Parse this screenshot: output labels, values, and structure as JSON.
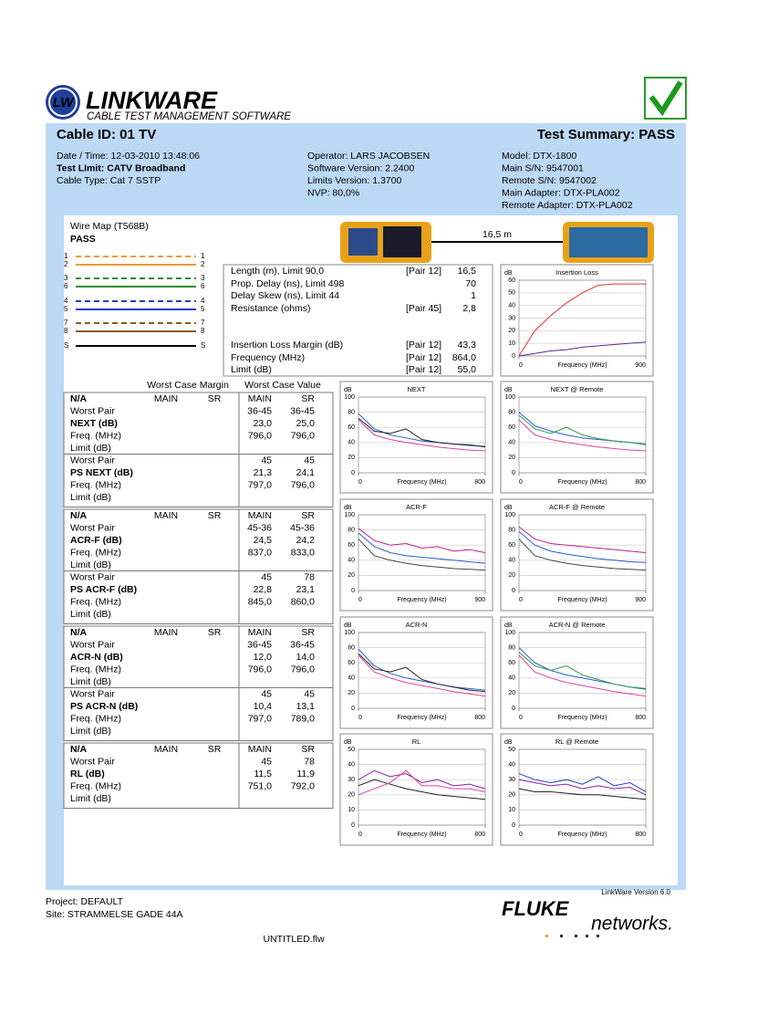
{
  "header": {
    "logo_mark": "LW",
    "logo_title": "LINKWARE",
    "logo_sub": "CABLE TEST MANAGEMENT SOFTWARE",
    "cable_id": "Cable ID: 01 TV",
    "summary": "Test Summary: PASS"
  },
  "info": {
    "col1": [
      "Date / Time: 12-03-2010 13:48:06",
      "Test LImit: CATV Broadband",
      "Cable Type: Cat 7 SSTP"
    ],
    "col2": [
      "Operator: LARS JACOBSEN",
      "Software Version: 2.2400",
      "Limits Version: 1.3700",
      "NVP: 80,0%"
    ],
    "col3": [
      "Model: DTX-1800",
      "Main S/N: 9547001",
      "Remote S/N: 9547002",
      "Main Adapter: DTX-PLA002",
      "Remote Adapter: DTX-PLA002"
    ]
  },
  "wire_map": {
    "title": "Wire Map (T568B)",
    "result": "PASS",
    "pins": [
      1,
      2,
      3,
      6,
      4,
      5,
      7,
      8,
      "S"
    ],
    "colors": [
      "#f39a2b",
      "#f39a2b",
      "#2e8b2e",
      "#2e8b2e",
      "#1f3fbf",
      "#1f3fbf",
      "#8b5a2b",
      "#8b5a2b",
      "#000000"
    ]
  },
  "link_length": "16,5 m",
  "measurements": [
    {
      "label": "Length (m), Limit 90,0",
      "pair": "[Pair 12]",
      "value": "16,5"
    },
    {
      "label": "Prop. Delay (ns), Limit 498",
      "value": "70"
    },
    {
      "label": "Delay Skew (ns), Limit 44",
      "value": "1"
    },
    {
      "label": "Resistance (ohms)",
      "pair": "[Pair 45]",
      "value": "2,8"
    },
    {
      "label": "Insertion Loss Margin (dB)",
      "pair": "[Pair 12]",
      "value": "43,3"
    },
    {
      "label": "Frequency (MHz)",
      "pair": "[Pair 12]",
      "value": "864,0"
    },
    {
      "label": "Limit (dB)",
      "pair": "[Pair 12]",
      "value": "55,0"
    }
  ],
  "table": {
    "margin_header": "Worst Case Margin",
    "value_header": "Worst Case Value",
    "blocks": [
      {
        "head": [
          "N/A",
          "MAIN",
          "SR",
          "MAIN",
          "SR"
        ],
        "rows": [
          {
            "label": "Worst Pair",
            "values": [
              "36-45",
              "36-45"
            ]
          },
          {
            "label": "NEXT (dB)",
            "bold": true,
            "values": [
              "23,0",
              "25,0"
            ]
          },
          {
            "label": "Freq. (MHz)",
            "values": [
              "796,0",
              "796,0"
            ]
          },
          {
            "label": "Limit (dB)"
          },
          {
            "label": "Worst Pair",
            "values": [
              "45",
              "45"
            ]
          },
          {
            "label": "PS NEXT (dB)",
            "bold": true,
            "values": [
              "21,3",
              "24,1"
            ]
          },
          {
            "label": "Freq. (MHz)",
            "values": [
              "797,0",
              "796,0"
            ]
          },
          {
            "label": "Limit (dB)"
          }
        ]
      },
      {
        "head": [
          "N/A",
          "MAIN",
          "SR",
          "MAIN",
          "SR"
        ],
        "rows": [
          {
            "label": "Worst Pair",
            "values": [
              "45-36",
              "45-36"
            ]
          },
          {
            "label": "ACR-F (dB)",
            "bold": true,
            "values": [
              "24,5",
              "24,2"
            ]
          },
          {
            "label": "Freq. (MHz)",
            "values": [
              "837,0",
              "833,0"
            ]
          },
          {
            "label": "Limit (dB)"
          },
          {
            "label": "Worst Pair",
            "values": [
              "45",
              "78"
            ]
          },
          {
            "label": "PS ACR-F (dB)",
            "bold": true,
            "values": [
              "22,8",
              "23,1"
            ]
          },
          {
            "label": "Freq. (MHz)",
            "values": [
              "845,0",
              "860,0"
            ]
          },
          {
            "label": "Limit (dB)"
          }
        ]
      },
      {
        "head": [
          "N/A",
          "MAIN",
          "SR",
          "MAIN",
          "SR"
        ],
        "rows": [
          {
            "label": "Worst Pair",
            "values": [
              "36-45",
              "36-45"
            ]
          },
          {
            "label": "ACR-N (dB)",
            "bold": true,
            "values": [
              "12,0",
              "14,0"
            ]
          },
          {
            "label": "Freq. (MHz)",
            "values": [
              "796,0",
              "796,0"
            ]
          },
          {
            "label": "Limit (dB)"
          },
          {
            "label": "Worst Pair",
            "values": [
              "45",
              "45"
            ]
          },
          {
            "label": "PS ACR-N (dB)",
            "bold": true,
            "values": [
              "10,4",
              "13,1"
            ]
          },
          {
            "label": "Freq. (MHz)",
            "values": [
              "797,0",
              "789,0"
            ]
          },
          {
            "label": "Limit (dB)"
          }
        ]
      },
      {
        "head": [
          "N/A",
          "MAIN",
          "SR",
          "MAIN",
          "SR"
        ],
        "rows": [
          {
            "label": "Worst Pair",
            "values": [
              "45",
              "78"
            ]
          },
          {
            "label": "RL (dB)",
            "bold": true,
            "values": [
              "11,5",
              "11,9"
            ]
          },
          {
            "label": "Freq. (MHz)",
            "values": [
              "751,0",
              "792,0"
            ]
          },
          {
            "label": "Limit (dB)"
          }
        ]
      }
    ]
  },
  "charts": [
    {
      "type": "line",
      "title": "Insertion Loss",
      "ylabel": "dB",
      "xlabel": "Frequency (MHz)",
      "xlim": [
        0,
        900
      ],
      "ylim": [
        0,
        60
      ],
      "xticks": [
        0,
        900
      ],
      "yticks": [
        0,
        10,
        20,
        30,
        40,
        50,
        60
      ],
      "x": [
        0,
        112.5,
        225,
        337.5,
        450,
        562.5,
        675,
        787.5,
        900
      ],
      "series": [
        {
          "color": "#e83030",
          "values": [
            0,
            20,
            32,
            42,
            50,
            56,
            57,
            57,
            57
          ]
        },
        {
          "color": "#5a2a9a",
          "values": [
            0,
            2,
            4,
            5,
            7,
            8,
            9,
            10,
            11
          ]
        }
      ]
    },
    {
      "type": "line",
      "title": "NEXT",
      "ylabel": "dB",
      "xlabel": "Frequency (MHz)",
      "xlim": [
        0,
        800
      ],
      "ylim": [
        0,
        100
      ],
      "xticks": [
        0,
        800
      ],
      "yticks": [
        0,
        20,
        40,
        60,
        80,
        100
      ],
      "x": [
        0,
        100,
        200,
        300,
        400,
        500,
        600,
        700,
        800
      ],
      "series": [
        {
          "color": "#2a5ad0",
          "values": [
            78,
            58,
            50,
            46,
            42,
            40,
            38,
            36,
            35
          ]
        },
        {
          "color": "#222222",
          "values": [
            72,
            55,
            52,
            58,
            44,
            40,
            38,
            37,
            34
          ]
        },
        {
          "color": "#e040a0",
          "values": [
            70,
            50,
            44,
            40,
            37,
            34,
            32,
            30,
            29
          ]
        }
      ]
    },
    {
      "type": "line",
      "title": "NEXT @ Remote",
      "ylabel": "dB",
      "xlabel": "Frequency (MHz)",
      "xlim": [
        0,
        800
      ],
      "ylim": [
        0,
        100
      ],
      "xticks": [
        0,
        800
      ],
      "yticks": [
        0,
        20,
        40,
        60,
        80,
        100
      ],
      "x": [
        0,
        100,
        200,
        300,
        400,
        500,
        600,
        700,
        800
      ],
      "series": [
        {
          "color": "#2a5ad0",
          "values": [
            80,
            62,
            55,
            50,
            46,
            44,
            42,
            40,
            38
          ]
        },
        {
          "color": "#2a9a4a",
          "values": [
            76,
            58,
            52,
            60,
            50,
            45,
            42,
            40,
            37
          ]
        },
        {
          "color": "#e040a0",
          "values": [
            70,
            50,
            44,
            40,
            37,
            34,
            32,
            30,
            29
          ]
        }
      ]
    },
    {
      "type": "line",
      "title": "ACR-F",
      "ylabel": "dB",
      "xlabel": "Frequency (MHz)",
      "xlim": [
        0,
        900
      ],
      "ylim": [
        0,
        100
      ],
      "xticks": [
        0,
        900
      ],
      "yticks": [
        0,
        20,
        40,
        60,
        80,
        100
      ],
      "x": [
        0,
        112.5,
        225,
        337.5,
        450,
        562.5,
        675,
        787.5,
        900
      ],
      "series": [
        {
          "color": "#c0208a",
          "values": [
            82,
            66,
            60,
            62,
            56,
            58,
            52,
            54,
            50
          ]
        },
        {
          "color": "#2a5ad0",
          "values": [
            76,
            58,
            50,
            46,
            44,
            42,
            40,
            38,
            36
          ]
        },
        {
          "color": "#444444",
          "values": [
            68,
            46,
            40,
            36,
            33,
            31,
            29,
            28,
            27
          ]
        }
      ]
    },
    {
      "type": "line",
      "title": "ACR-F @ Remote",
      "ylabel": "dB",
      "xlabel": "Frequency (MHz)",
      "xlim": [
        0,
        900
      ],
      "ylim": [
        0,
        100
      ],
      "xticks": [
        0,
        900
      ],
      "yticks": [
        0,
        20,
        40,
        60,
        80,
        100
      ],
      "x": [
        0,
        112.5,
        225,
        337.5,
        450,
        562.5,
        675,
        787.5,
        900
      ],
      "series": [
        {
          "color": "#c0208a",
          "values": [
            84,
            68,
            62,
            60,
            58,
            56,
            54,
            52,
            50
          ]
        },
        {
          "color": "#2a5ad0",
          "values": [
            78,
            60,
            52,
            48,
            45,
            42,
            40,
            38,
            37
          ]
        },
        {
          "color": "#444444",
          "values": [
            68,
            46,
            40,
            36,
            33,
            31,
            29,
            28,
            27
          ]
        }
      ]
    },
    {
      "type": "line",
      "title": "ACR-N",
      "ylabel": "dB",
      "xlabel": "Frequency (MHz)",
      "xlim": [
        0,
        800
      ],
      "ylim": [
        0,
        100
      ],
      "xticks": [
        0,
        800
      ],
      "yticks": [
        0,
        20,
        40,
        60,
        80,
        100
      ],
      "x": [
        0,
        100,
        200,
        300,
        400,
        500,
        600,
        700,
        800
      ],
      "series": [
        {
          "color": "#2a5ad0",
          "values": [
            78,
            56,
            46,
            40,
            36,
            32,
            28,
            26,
            24
          ]
        },
        {
          "color": "#222222",
          "values": [
            72,
            52,
            48,
            54,
            38,
            32,
            28,
            24,
            22
          ]
        },
        {
          "color": "#e040a0",
          "values": [
            70,
            48,
            40,
            34,
            30,
            26,
            22,
            19,
            16
          ]
        }
      ]
    },
    {
      "type": "line",
      "title": "ACR-N @ Remote",
      "ylabel": "dB",
      "xlabel": "Frequency (MHz)",
      "xlim": [
        0,
        800
      ],
      "ylim": [
        0,
        100
      ],
      "xticks": [
        0,
        800
      ],
      "yticks": [
        0,
        20,
        40,
        60,
        80,
        100
      ],
      "x": [
        0,
        100,
        200,
        300,
        400,
        500,
        600,
        700,
        800
      ],
      "series": [
        {
          "color": "#2a5ad0",
          "values": [
            80,
            60,
            50,
            44,
            40,
            36,
            32,
            28,
            26
          ]
        },
        {
          "color": "#2a9a4a",
          "values": [
            74,
            56,
            50,
            56,
            44,
            38,
            32,
            28,
            25
          ]
        },
        {
          "color": "#e040a0",
          "values": [
            70,
            48,
            40,
            34,
            30,
            26,
            22,
            19,
            16
          ]
        }
      ]
    },
    {
      "type": "line",
      "title": "RL",
      "ylabel": "dB",
      "xlabel": "Frequency (MHz)",
      "xlim": [
        0,
        800
      ],
      "ylim": [
        0,
        50
      ],
      "xticks": [
        0,
        800
      ],
      "yticks": [
        0,
        10,
        20,
        30,
        40,
        50
      ],
      "x": [
        0,
        100,
        200,
        300,
        400,
        500,
        600,
        700,
        800
      ],
      "series": [
        {
          "color": "#8a20a0",
          "values": [
            30,
            36,
            32,
            34,
            28,
            30,
            26,
            27,
            24
          ]
        },
        {
          "color": "#222222",
          "values": [
            26,
            30,
            27,
            24,
            22,
            20,
            19,
            18,
            17
          ]
        },
        {
          "color": "#e040a0",
          "values": [
            20,
            24,
            28,
            36,
            26,
            26,
            24,
            24,
            22
          ]
        }
      ]
    },
    {
      "type": "line",
      "title": "RL @ Remote",
      "ylabel": "dB",
      "xlabel": "Frequency (MHz)",
      "xlim": [
        0,
        800
      ],
      "ylim": [
        0,
        50
      ],
      "xticks": [
        0,
        800
      ],
      "yticks": [
        0,
        10,
        20,
        30,
        40,
        50
      ],
      "x": [
        0,
        100,
        200,
        300,
        400,
        500,
        600,
        700,
        800
      ],
      "series": [
        {
          "color": "#2a3ad0",
          "values": [
            34,
            30,
            28,
            30,
            27,
            32,
            26,
            28,
            22
          ]
        },
        {
          "color": "#8a20a0",
          "values": [
            30,
            28,
            26,
            27,
            24,
            26,
            24,
            25,
            20
          ]
        },
        {
          "color": "#222222",
          "values": [
            24,
            22,
            22,
            21,
            20,
            20,
            19,
            18,
            17
          ]
        }
      ]
    }
  ],
  "footer": {
    "project": "Project: DEFAULT",
    "site": "Site: STRAMMELSE GADE 44A",
    "version": "LinkWare Version  6.0",
    "brand": "FLUKE",
    "brand_sub": "networks.",
    "file": "UNTITLED.flw"
  }
}
